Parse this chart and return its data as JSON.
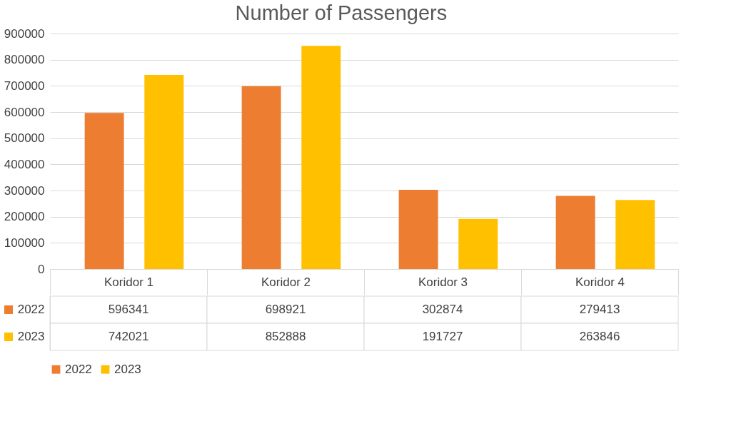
{
  "chart_data": {
    "type": "bar",
    "title": "Number of Passengers",
    "categories": [
      "Koridor 1",
      "Koridor 2",
      "Koridor 3",
      "Koridor 4"
    ],
    "series": [
      {
        "name": "2022",
        "color": "#ed7d31",
        "values": [
          596341,
          698921,
          302874,
          279413
        ]
      },
      {
        "name": "2023",
        "color": "#ffc000",
        "values": [
          742021,
          852888,
          191727,
          263846
        ]
      }
    ],
    "ylim": [
      0,
      900000
    ],
    "yticks": [
      0,
      100000,
      200000,
      300000,
      400000,
      500000,
      600000,
      700000,
      800000,
      900000
    ],
    "grid": "y",
    "legend": "bottom",
    "data_labels": true
  }
}
